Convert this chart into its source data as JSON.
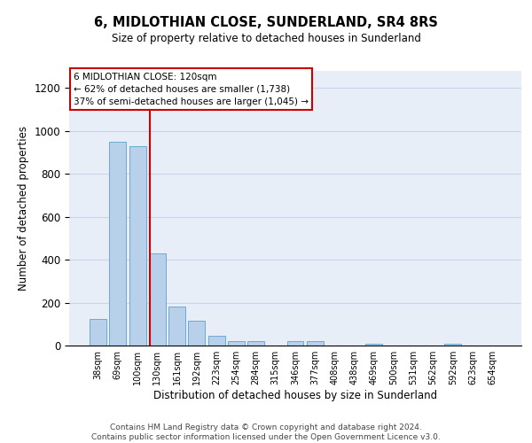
{
  "title": "6, MIDLOTHIAN CLOSE, SUNDERLAND, SR4 8RS",
  "subtitle": "Size of property relative to detached houses in Sunderland",
  "xlabel": "Distribution of detached houses by size in Sunderland",
  "ylabel": "Number of detached properties",
  "categories": [
    "38sqm",
    "69sqm",
    "100sqm",
    "130sqm",
    "161sqm",
    "192sqm",
    "223sqm",
    "254sqm",
    "284sqm",
    "315sqm",
    "346sqm",
    "377sqm",
    "408sqm",
    "438sqm",
    "469sqm",
    "500sqm",
    "531sqm",
    "562sqm",
    "592sqm",
    "623sqm",
    "654sqm"
  ],
  "values": [
    125,
    950,
    930,
    430,
    180,
    115,
    45,
    20,
    20,
    0,
    20,
    20,
    0,
    0,
    10,
    0,
    0,
    0,
    10,
    0,
    0
  ],
  "bar_color": "#b8d0ea",
  "bar_edge_color": "#6aaad4",
  "annotation_box_text": "6 MIDLOTHIAN CLOSE: 120sqm\n← 62% of detached houses are smaller (1,738)\n37% of semi-detached houses are larger (1,045) →",
  "annotation_box_color": "#ffffff",
  "annotation_box_edge_color": "#cc0000",
  "annotation_line_color": "#cc0000",
  "grid_color": "#c8d4e8",
  "background_color": "#e8eef8",
  "ylim": [
    0,
    1280
  ],
  "yticks": [
    0,
    200,
    400,
    600,
    800,
    1000,
    1200
  ],
  "footer_line1": "Contains HM Land Registry data © Crown copyright and database right 2024.",
  "footer_line2": "Contains public sector information licensed under the Open Government Licence v3.0."
}
